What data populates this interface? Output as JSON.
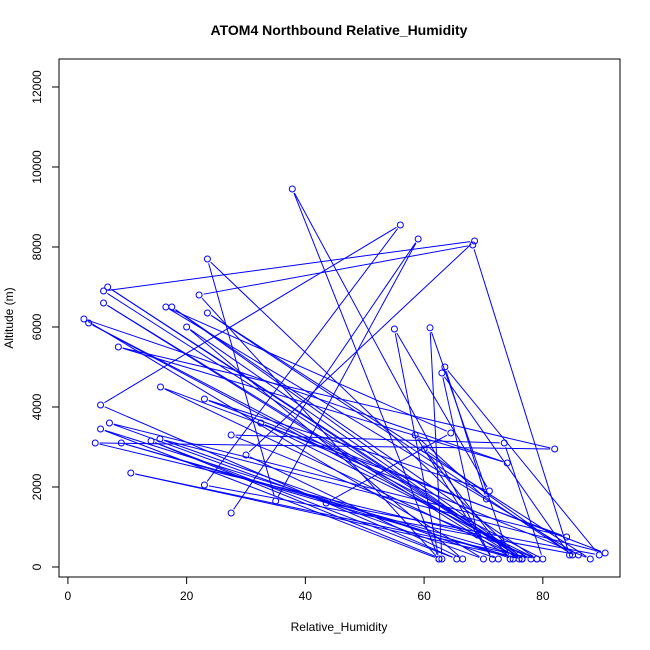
{
  "chart_data": {
    "type": "line",
    "title": "ATOM4 Northbound Relative_Humidity",
    "xlabel": "Relative_Humidity",
    "ylabel": "Altitude (m)",
    "xlim": [
      -1.5,
      93
    ],
    "ylim": [
      -250,
      12700
    ],
    "x_ticks": [
      0,
      20,
      40,
      60,
      80
    ],
    "y_ticks": [
      0,
      2000,
      4000,
      6000,
      8000,
      10000,
      12000
    ],
    "x_tick_labels": [
      "0",
      "20",
      "40",
      "60",
      "80"
    ],
    "y_tick_labels": [
      "0",
      "2000",
      "4000",
      "6000",
      "8000",
      "10000",
      "12000"
    ],
    "grid": false,
    "series": [
      {
        "color": "#0000ff",
        "marker": "open-circle",
        "x": [
          27.5,
          59,
          35,
          23.5,
          76.5,
          10.6,
          79,
          17.5,
          76,
          6.7,
          76.5,
          6,
          68.5,
          30,
          66.5,
          20,
          76.5,
          15.6,
          84,
          7,
          70,
          2.7,
          74,
          8.5,
          82,
          4.6,
          69,
          63,
          84.5,
          68.2,
          22.1,
          62.5,
          37.8,
          71.5,
          58.5,
          70.5,
          63.5,
          89.5,
          43.5,
          64.5,
          16.5,
          86,
          23,
          56,
          5.5,
          65.5,
          14,
          63,
          61,
          74.5,
          60,
          85,
          23.5,
          88,
          32.5,
          79,
          27.5,
          73.5,
          80,
          3.5,
          78,
          9,
          76,
          6,
          75,
          5.5,
          62.5,
          55,
          71,
          23,
          90.5,
          15.5,
          72.5
        ],
        "y": [
          1350,
          8200,
          1650,
          7700,
          200,
          2350,
          200,
          6500,
          300,
          7000,
          200,
          6900,
          8150,
          2800,
          200,
          6000,
          200,
          4500,
          750,
          3600,
          200,
          6200,
          2600,
          5500,
          2950,
          3100,
          800,
          4850,
          300,
          8050,
          6800,
          200,
          9450,
          200,
          3300,
          1700,
          5000,
          300,
          1600,
          3350,
          6500,
          300,
          2050,
          8550,
          4050,
          200,
          3150,
          200,
          5980,
          200,
          2950,
          300,
          6350,
          200,
          3600,
          200,
          3300,
          3100,
          200,
          6100,
          200,
          3100,
          200,
          6600,
          200,
          3450,
          200,
          5950,
          1900,
          4200,
          350,
          3200,
          200
        ]
      }
    ]
  }
}
